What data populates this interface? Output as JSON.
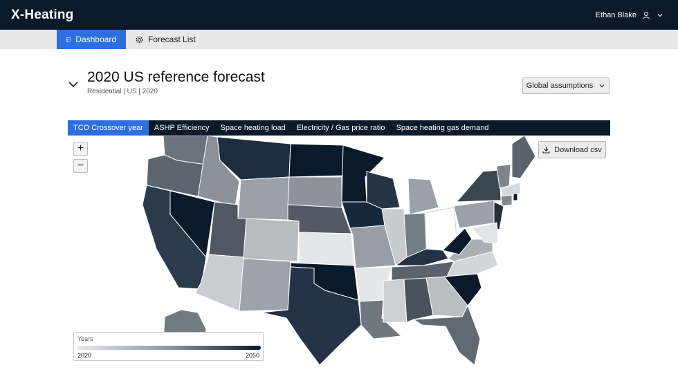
{
  "app": {
    "logo_text": "X-Heating"
  },
  "user": {
    "name": "Ethan Blake",
    "icon": "user-icon"
  },
  "nav": {
    "items": [
      {
        "label": "Dashboard",
        "icon": "layout-icon"
      },
      {
        "label": "Forecast List",
        "icon": "gear-icon"
      }
    ]
  },
  "forecast": {
    "title": "2020 US reference forecast",
    "subtitle": "Residential | US | 2020"
  },
  "global_assumptions": {
    "label": "Global assumptions"
  },
  "tabs": [
    {
      "label": "TCO Crossover year"
    },
    {
      "label": "ASHP Efficiency"
    },
    {
      "label": "Space heating load"
    },
    {
      "label": "Electricity / Gas price ratio"
    },
    {
      "label": "Space heating gas demand"
    }
  ],
  "zoom": {
    "in": "+",
    "out": "−"
  },
  "download": {
    "label": "Download csv"
  },
  "legend": {
    "title": "Years",
    "min": "2020",
    "max": "2050"
  },
  "colors": {
    "topbar": "#0b1a2b",
    "accent": "#2d6fe0",
    "scale_low": "#e6e8ea",
    "scale_high": "#0b1a2b"
  }
}
